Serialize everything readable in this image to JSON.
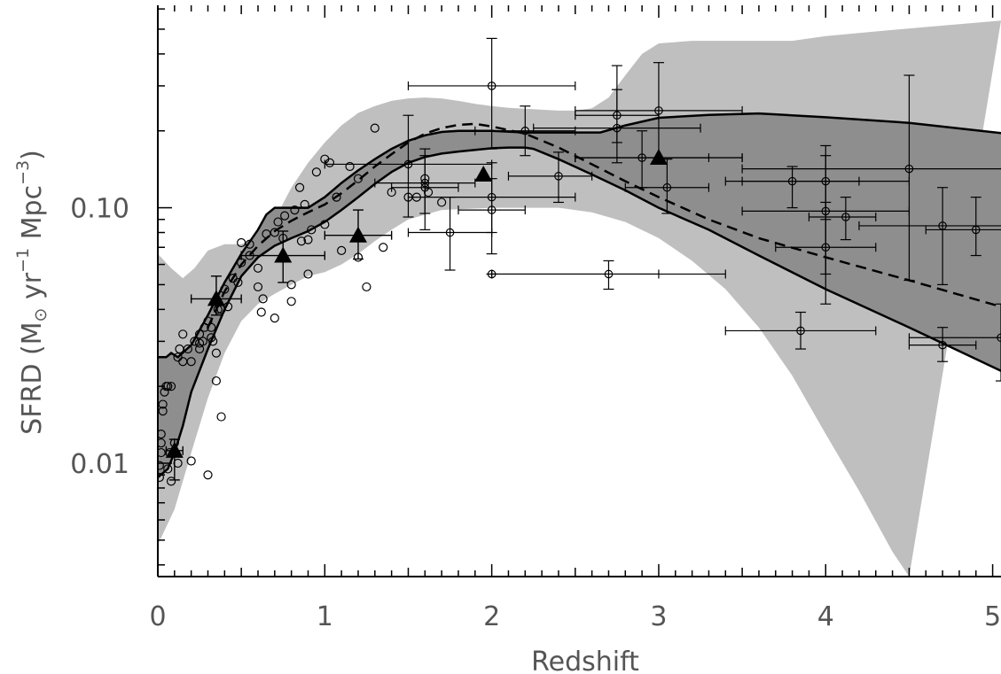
{
  "chart_data": {
    "type": "scatter",
    "title": "",
    "xlabel": "Redshift",
    "ylabel": {
      "main": "SFRD (M",
      "sun": "⊙",
      "yr": " yr",
      "yr_exp": "−1",
      "mpc": " Mpc",
      "mpc_exp": "−3",
      "close": ")"
    },
    "x_scale": "linear",
    "y_scale": "log",
    "xlim": [
      0,
      5.05
    ],
    "ylim": [
      0.0036,
      0.62
    ],
    "x_ticks": [
      {
        "value": 0,
        "label": "0"
      },
      {
        "value": 1,
        "label": "1"
      },
      {
        "value": 2,
        "label": "2"
      },
      {
        "value": 3,
        "label": "3"
      },
      {
        "value": 4,
        "label": "4"
      },
      {
        "value": 5,
        "label": "5"
      }
    ],
    "y_ticks": [
      {
        "value": 0.01,
        "label": "0.01"
      },
      {
        "value": 0.1,
        "label": "0.10"
      }
    ],
    "grid": false,
    "colors": {
      "outer_band": "#bfbfbf",
      "inner_band": "#8e8e8e",
      "lines": "#000000",
      "markers": "#000000"
    },
    "outer_band": {
      "upper": [
        [
          0,
          0.066
        ],
        [
          0.08,
          0.058
        ],
        [
          0.15,
          0.053
        ],
        [
          0.22,
          0.058
        ],
        [
          0.3,
          0.068
        ],
        [
          0.4,
          0.072
        ],
        [
          0.5,
          0.072
        ],
        [
          0.6,
          0.077
        ],
        [
          0.7,
          0.09
        ],
        [
          0.8,
          0.12
        ],
        [
          0.9,
          0.15
        ],
        [
          1.0,
          0.18
        ],
        [
          1.1,
          0.21
        ],
        [
          1.2,
          0.235
        ],
        [
          1.3,
          0.25
        ],
        [
          1.4,
          0.262
        ],
        [
          1.5,
          0.268
        ],
        [
          1.6,
          0.27
        ],
        [
          1.7,
          0.268
        ],
        [
          1.8,
          0.262
        ],
        [
          1.9,
          0.255
        ],
        [
          2.0,
          0.25
        ],
        [
          2.1,
          0.246
        ],
        [
          2.2,
          0.244
        ],
        [
          2.3,
          0.242
        ],
        [
          2.4,
          0.24
        ],
        [
          2.5,
          0.24
        ],
        [
          2.6,
          0.245
        ],
        [
          2.7,
          0.27
        ],
        [
          2.8,
          0.33
        ],
        [
          2.9,
          0.4
        ],
        [
          3.0,
          0.44
        ],
        [
          3.2,
          0.45
        ],
        [
          3.4,
          0.45
        ],
        [
          3.6,
          0.45
        ],
        [
          3.8,
          0.45
        ],
        [
          4.0,
          0.47
        ],
        [
          4.3,
          0.49
        ],
        [
          4.6,
          0.51
        ],
        [
          5.05,
          0.54
        ]
      ],
      "lower": [
        [
          0,
          0.0048
        ],
        [
          0.1,
          0.0066
        ],
        [
          0.2,
          0.011
        ],
        [
          0.3,
          0.018
        ],
        [
          0.4,
          0.027
        ],
        [
          0.5,
          0.036
        ],
        [
          0.6,
          0.042
        ],
        [
          0.7,
          0.046
        ],
        [
          0.8,
          0.05
        ],
        [
          0.9,
          0.054
        ],
        [
          1.0,
          0.056
        ],
        [
          1.1,
          0.06
        ],
        [
          1.2,
          0.066
        ],
        [
          1.3,
          0.074
        ],
        [
          1.4,
          0.082
        ],
        [
          1.5,
          0.09
        ],
        [
          1.7,
          0.098
        ],
        [
          2.0,
          0.1
        ],
        [
          2.2,
          0.1
        ],
        [
          2.4,
          0.1
        ],
        [
          2.6,
          0.096
        ],
        [
          2.8,
          0.088
        ],
        [
          3.0,
          0.076
        ],
        [
          3.2,
          0.062
        ],
        [
          3.4,
          0.048
        ],
        [
          3.6,
          0.034
        ],
        [
          3.8,
          0.022
        ],
        [
          4.0,
          0.013
        ],
        [
          4.2,
          0.0078
        ],
        [
          4.4,
          0.0045
        ],
        [
          4.5,
          0.0036
        ]
      ]
    },
    "inner_band": {
      "upper": [
        [
          0,
          0.026
        ],
        [
          0.05,
          0.026
        ],
        [
          0.08,
          0.027
        ],
        [
          0.12,
          0.026
        ],
        [
          0.2,
          0.029
        ],
        [
          0.3,
          0.038
        ],
        [
          0.4,
          0.051
        ],
        [
          0.5,
          0.066
        ],
        [
          0.6,
          0.082
        ],
        [
          0.65,
          0.094
        ],
        [
          0.7,
          0.1
        ],
        [
          0.8,
          0.1
        ],
        [
          0.9,
          0.1
        ],
        [
          1.0,
          0.11
        ],
        [
          1.1,
          0.125
        ],
        [
          1.2,
          0.14
        ],
        [
          1.3,
          0.155
        ],
        [
          1.4,
          0.17
        ],
        [
          1.5,
          0.183
        ],
        [
          1.6,
          0.192
        ],
        [
          1.7,
          0.198
        ],
        [
          1.8,
          0.2
        ],
        [
          1.9,
          0.2
        ],
        [
          2.0,
          0.2
        ],
        [
          2.2,
          0.197
        ],
        [
          2.4,
          0.197
        ],
        [
          2.6,
          0.197
        ],
        [
          2.65,
          0.197
        ],
        [
          2.8,
          0.21
        ],
        [
          3.0,
          0.225
        ],
        [
          3.3,
          0.231
        ],
        [
          3.6,
          0.234
        ],
        [
          4.0,
          0.226
        ],
        [
          4.5,
          0.215
        ],
        [
          5.05,
          0.196
        ]
      ],
      "lower": [
        [
          0,
          0.0088
        ],
        [
          0.06,
          0.0095
        ],
        [
          0.1,
          0.011
        ],
        [
          0.15,
          0.014
        ],
        [
          0.2,
          0.019
        ],
        [
          0.3,
          0.028
        ],
        [
          0.4,
          0.04
        ],
        [
          0.5,
          0.054
        ],
        [
          0.6,
          0.064
        ],
        [
          0.7,
          0.071
        ],
        [
          0.8,
          0.076
        ],
        [
          0.9,
          0.081
        ],
        [
          1.0,
          0.088
        ],
        [
          1.1,
          0.098
        ],
        [
          1.2,
          0.11
        ],
        [
          1.3,
          0.124
        ],
        [
          1.4,
          0.138
        ],
        [
          1.5,
          0.15
        ],
        [
          1.6,
          0.158
        ],
        [
          1.7,
          0.163
        ],
        [
          1.8,
          0.166
        ],
        [
          2.0,
          0.171
        ],
        [
          2.1,
          0.172
        ],
        [
          2.2,
          0.172
        ],
        [
          2.25,
          0.17
        ],
        [
          2.4,
          0.155
        ],
        [
          2.6,
          0.135
        ],
        [
          2.8,
          0.117
        ],
        [
          3.0,
          0.1
        ],
        [
          3.3,
          0.082
        ],
        [
          3.6,
          0.065
        ],
        [
          4.0,
          0.048
        ],
        [
          4.5,
          0.034
        ],
        [
          5.05,
          0.023
        ]
      ]
    },
    "dashed_median": [
      [
        0.3,
        0.034
      ],
      [
        0.4,
        0.047
      ],
      [
        0.5,
        0.06
      ],
      [
        0.6,
        0.071
      ],
      [
        0.7,
        0.081
      ],
      [
        0.8,
        0.089
      ],
      [
        0.9,
        0.096
      ],
      [
        1.0,
        0.103
      ],
      [
        1.1,
        0.114
      ],
      [
        1.2,
        0.128
      ],
      [
        1.3,
        0.145
      ],
      [
        1.4,
        0.162
      ],
      [
        1.5,
        0.18
      ],
      [
        1.6,
        0.195
      ],
      [
        1.7,
        0.205
      ],
      [
        1.8,
        0.211
      ],
      [
        1.9,
        0.213
      ],
      [
        2.0,
        0.208
      ],
      [
        2.2,
        0.195
      ],
      [
        2.4,
        0.172
      ],
      [
        2.6,
        0.148
      ],
      [
        2.8,
        0.127
      ],
      [
        3.0,
        0.11
      ],
      [
        3.3,
        0.09
      ],
      [
        3.6,
        0.076
      ],
      [
        4.0,
        0.064
      ],
      [
        4.5,
        0.052
      ],
      [
        5.05,
        0.041
      ]
    ],
    "triangles": [
      {
        "x": 0.1,
        "y": 0.0112,
        "xerr": 0.05,
        "yerr_lo": 0.0026,
        "yerr_hi": 0.0012
      },
      {
        "x": 0.35,
        "y": 0.044,
        "xerr": 0.15,
        "yerr_lo": 0.006,
        "yerr_hi": 0.01
      },
      {
        "x": 0.75,
        "y": 0.065,
        "xerr": 0.25,
        "yerr_lo": 0.014,
        "yerr_hi": 0.016
      },
      {
        "x": 1.2,
        "y": 0.078,
        "xerr": 0.2,
        "yerr_lo": 0.015,
        "yerr_hi": 0.02
      },
      {
        "x": 1.95,
        "y": 0.135,
        "xerr": 0.0,
        "yerr_lo": 0.0,
        "yerr_hi": 0.0
      },
      {
        "x": 3.0,
        "y": 0.157,
        "xerr": 0.5,
        "yerr_lo": 0.0,
        "yerr_hi": 0.0
      }
    ],
    "points_with_errors": [
      {
        "x": 1.5,
        "y": 0.148,
        "xl": 1.0,
        "xh": 2.0,
        "yl": 0.092,
        "yh": 0.23
      },
      {
        "x": 1.6,
        "y": 0.12,
        "xl": 1.4,
        "xh": 1.8,
        "yl": 0.082,
        "yh": 0.17
      },
      {
        "x": 1.6,
        "y": 0.125,
        "xl": 1.3,
        "xh": 1.9,
        "yl": 0.095,
        "yh": 0.16
      },
      {
        "x": 1.75,
        "y": 0.08,
        "xl": 1.5,
        "xh": 2.0,
        "yl": 0.057,
        "yh": 0.11
      },
      {
        "x": 2.0,
        "y": 0.3,
        "xl": 1.5,
        "xh": 2.5,
        "yl": 0.17,
        "yh": 0.46
      },
      {
        "x": 2.0,
        "y": 0.098,
        "xl": 1.8,
        "xh": 2.2,
        "yl": 0.066,
        "yh": 0.13
      },
      {
        "x": 2.0,
        "y": 0.11,
        "xl": 1.5,
        "xh": 2.5,
        "yl": 0.08,
        "yh": 0.15
      },
      {
        "x": 2.0,
        "y": 0.055,
        "xl": 2.0,
        "xh": 3.0,
        "yl": 0.055,
        "yh": 0.055
      },
      {
        "x": 2.2,
        "y": 0.2,
        "xl": 1.9,
        "xh": 2.5,
        "yl": 0.16,
        "yh": 0.25
      },
      {
        "x": 2.4,
        "y": 0.133,
        "xl": 2.1,
        "xh": 2.6,
        "yl": 0.105,
        "yh": 0.165
      },
      {
        "x": 2.7,
        "y": 0.055,
        "xl": 2.0,
        "xh": 3.4,
        "yl": 0.048,
        "yh": 0.062
      },
      {
        "x": 2.75,
        "y": 0.205,
        "xl": 2.25,
        "xh": 3.25,
        "yl": 0.15,
        "yh": 0.29
      },
      {
        "x": 2.75,
        "y": 0.23,
        "xl": 2.5,
        "xh": 3.0,
        "yl": 0.18,
        "yh": 0.36
      },
      {
        "x": 2.9,
        "y": 0.157,
        "xl": 2.5,
        "xh": 3.3,
        "yl": 0.12,
        "yh": 0.2
      },
      {
        "x": 3.0,
        "y": 0.24,
        "xl": 2.5,
        "xh": 3.5,
        "yl": 0.15,
        "yh": 0.37
      },
      {
        "x": 3.05,
        "y": 0.12,
        "xl": 2.8,
        "xh": 3.3,
        "yl": 0.095,
        "yh": 0.155
      },
      {
        "x": 3.8,
        "y": 0.127,
        "xl": 3.4,
        "xh": 4.2,
        "yl": 0.1,
        "yh": 0.145
      },
      {
        "x": 3.85,
        "y": 0.033,
        "xl": 3.4,
        "xh": 4.3,
        "yl": 0.028,
        "yh": 0.039
      },
      {
        "x": 4.0,
        "y": 0.127,
        "xl": 3.5,
        "xh": 4.5,
        "yl": 0.09,
        "yh": 0.175
      },
      {
        "x": 4.0,
        "y": 0.097,
        "xl": 3.5,
        "xh": 4.5,
        "yl": 0.055,
        "yh": 0.16
      },
      {
        "x": 4.0,
        "y": 0.07,
        "xl": 3.7,
        "xh": 4.3,
        "yl": 0.042,
        "yh": 0.105
      },
      {
        "x": 4.12,
        "y": 0.092,
        "xl": 3.9,
        "xh": 4.3,
        "yl": 0.075,
        "yh": 0.11
      },
      {
        "x": 4.5,
        "y": 0.142,
        "xl": 3.5,
        "xh": 5.5,
        "yl": 0.052,
        "yh": 0.33
      },
      {
        "x": 4.7,
        "y": 0.085,
        "xl": 4.2,
        "xh": 5.2,
        "yl": 0.05,
        "yh": 0.12
      },
      {
        "x": 4.7,
        "y": 0.029,
        "xl": 4.5,
        "xh": 4.9,
        "yl": 0.025,
        "yh": 0.034
      },
      {
        "x": 4.9,
        "y": 0.082,
        "xl": 4.6,
        "xh": 5.2,
        "yl": 0.065,
        "yh": 0.11
      },
      {
        "x": 5.05,
        "y": 0.031,
        "xl": 4.5,
        "xh": 5.5,
        "yl": 0.021,
        "yh": 0.042
      }
    ],
    "open_circles": [
      [
        0.01,
        0.0088
      ],
      [
        0.01,
        0.0098
      ],
      [
        0.02,
        0.011
      ],
      [
        0.02,
        0.012
      ],
      [
        0.02,
        0.013
      ],
      [
        0.03,
        0.016
      ],
      [
        0.03,
        0.017
      ],
      [
        0.04,
        0.019
      ],
      [
        0.05,
        0.02
      ],
      [
        0.06,
        0.02
      ],
      [
        0.07,
        0.011
      ],
      [
        0.08,
        0.02
      ],
      [
        0.1,
        0.012
      ],
      [
        0.12,
        0.026
      ],
      [
        0.13,
        0.028
      ],
      [
        0.15,
        0.025
      ],
      [
        0.15,
        0.032
      ],
      [
        0.18,
        0.028
      ],
      [
        0.2,
        0.025
      ],
      [
        0.22,
        0.03
      ],
      [
        0.25,
        0.028
      ],
      [
        0.25,
        0.032
      ],
      [
        0.28,
        0.034
      ],
      [
        0.3,
        0.036
      ],
      [
        0.32,
        0.031
      ],
      [
        0.33,
        0.03
      ],
      [
        0.35,
        0.027
      ],
      [
        0.36,
        0.04
      ],
      [
        0.38,
        0.04
      ],
      [
        0.4,
        0.048
      ],
      [
        0.42,
        0.041
      ],
      [
        0.45,
        0.053
      ],
      [
        0.48,
        0.051
      ],
      [
        0.5,
        0.061
      ],
      [
        0.5,
        0.073
      ],
      [
        0.55,
        0.065
      ],
      [
        0.55,
        0.072
      ],
      [
        0.6,
        0.049
      ],
      [
        0.6,
        0.058
      ],
      [
        0.62,
        0.039
      ],
      [
        0.63,
        0.044
      ],
      [
        0.65,
        0.079
      ],
      [
        0.7,
        0.037
      ],
      [
        0.7,
        0.08
      ],
      [
        0.72,
        0.088
      ],
      [
        0.75,
        0.076
      ],
      [
        0.76,
        0.093
      ],
      [
        0.8,
        0.043
      ],
      [
        0.8,
        0.05
      ],
      [
        0.82,
        0.098
      ],
      [
        0.85,
        0.12
      ],
      [
        0.86,
        0.074
      ],
      [
        0.88,
        0.103
      ],
      [
        0.9,
        0.055
      ],
      [
        0.9,
        0.075
      ],
      [
        0.92,
        0.082
      ],
      [
        0.95,
        0.138
      ],
      [
        1.0,
        0.086
      ],
      [
        1.0,
        0.155
      ],
      [
        1.03,
        0.15
      ],
      [
        1.07,
        0.11
      ],
      [
        1.1,
        0.068
      ],
      [
        1.15,
        0.145
      ],
      [
        1.2,
        0.064
      ],
      [
        1.2,
        0.13
      ],
      [
        1.25,
        0.049
      ],
      [
        1.3,
        0.205
      ],
      [
        1.35,
        0.07
      ],
      [
        1.4,
        0.115
      ],
      [
        1.5,
        0.11
      ],
      [
        1.55,
        0.11
      ],
      [
        1.6,
        0.13
      ],
      [
        1.62,
        0.115
      ],
      [
        1.7,
        0.105
      ],
      [
        0.06,
        0.0095
      ],
      [
        0.08,
        0.0085
      ],
      [
        0.12,
        0.01
      ],
      [
        0.2,
        0.0102
      ],
      [
        0.3,
        0.009
      ],
      [
        0.35,
        0.021
      ],
      [
        0.38,
        0.0152
      ],
      [
        0.25,
        0.0295
      ],
      [
        0.27,
        0.03
      ],
      [
        0.32,
        0.034
      ]
    ]
  }
}
